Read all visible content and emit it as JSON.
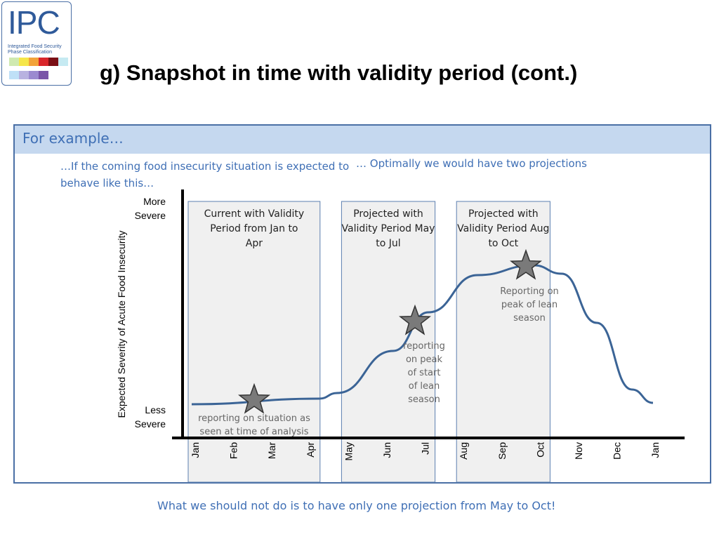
{
  "logo": {
    "text": "IPC",
    "subtitle_line1": "Integrated Food Security",
    "subtitle_line2": "Phase Classification",
    "swatch_colors": [
      "#cfe9b0",
      "#f5e64a",
      "#f2a33a",
      "#d9262b",
      "#7a0f15",
      "#c6eaf2",
      "#bfe0f7",
      "#b8b2e0",
      "#9b8ad0",
      "#7a55a8"
    ]
  },
  "title": "g) Snapshot in time with validity period (cont.)",
  "frame": {
    "header": "For example…",
    "note_left": "…If the coming food insecurity situation is expected to behave like this…",
    "note_right": "… Optimally we would have two projections"
  },
  "chart": {
    "y_axis_label": "Expected Severity of Acute Food Insecurity",
    "y_top_label": [
      "More",
      "Severe"
    ],
    "y_bottom_label": [
      "Less",
      "Severe"
    ],
    "months": [
      "Jan",
      "Feb",
      "Mar",
      "Apr",
      "May",
      "Jun",
      "Jul",
      "Aug",
      "Sep",
      "Oct",
      "Nov",
      "Dec",
      "Jan"
    ],
    "panels": [
      {
        "title": [
          "Current with Validity",
          "Period from Jan to",
          "Apr"
        ],
        "from": "Jan",
        "to": "Apr"
      },
      {
        "title": [
          "Projected with",
          "Validity Period May",
          "to Jul"
        ],
        "from": "May",
        "to": "Jul"
      },
      {
        "title": [
          "Projected with",
          "Validity Period Aug",
          "to Oct"
        ],
        "from": "Aug",
        "to": "Oct"
      }
    ],
    "captions": [
      [
        "reporting on situation as",
        "seen at time of analysis"
      ],
      [
        "reporting",
        "on peak",
        "of start",
        "of lean",
        "season"
      ],
      [
        "Reporting on",
        "peak of lean",
        "season"
      ]
    ],
    "stars_at_month": [
      "Mar",
      "Jul",
      "Oct"
    ],
    "colors": {
      "curve": "#3b6496",
      "panel_fill": "#f0f0f0",
      "panel_border": "#5b7fb0",
      "star_fill": "#7a7a7a"
    }
  },
  "bottom_note": "What we should not do is to have only one projection from May to Oct!"
}
